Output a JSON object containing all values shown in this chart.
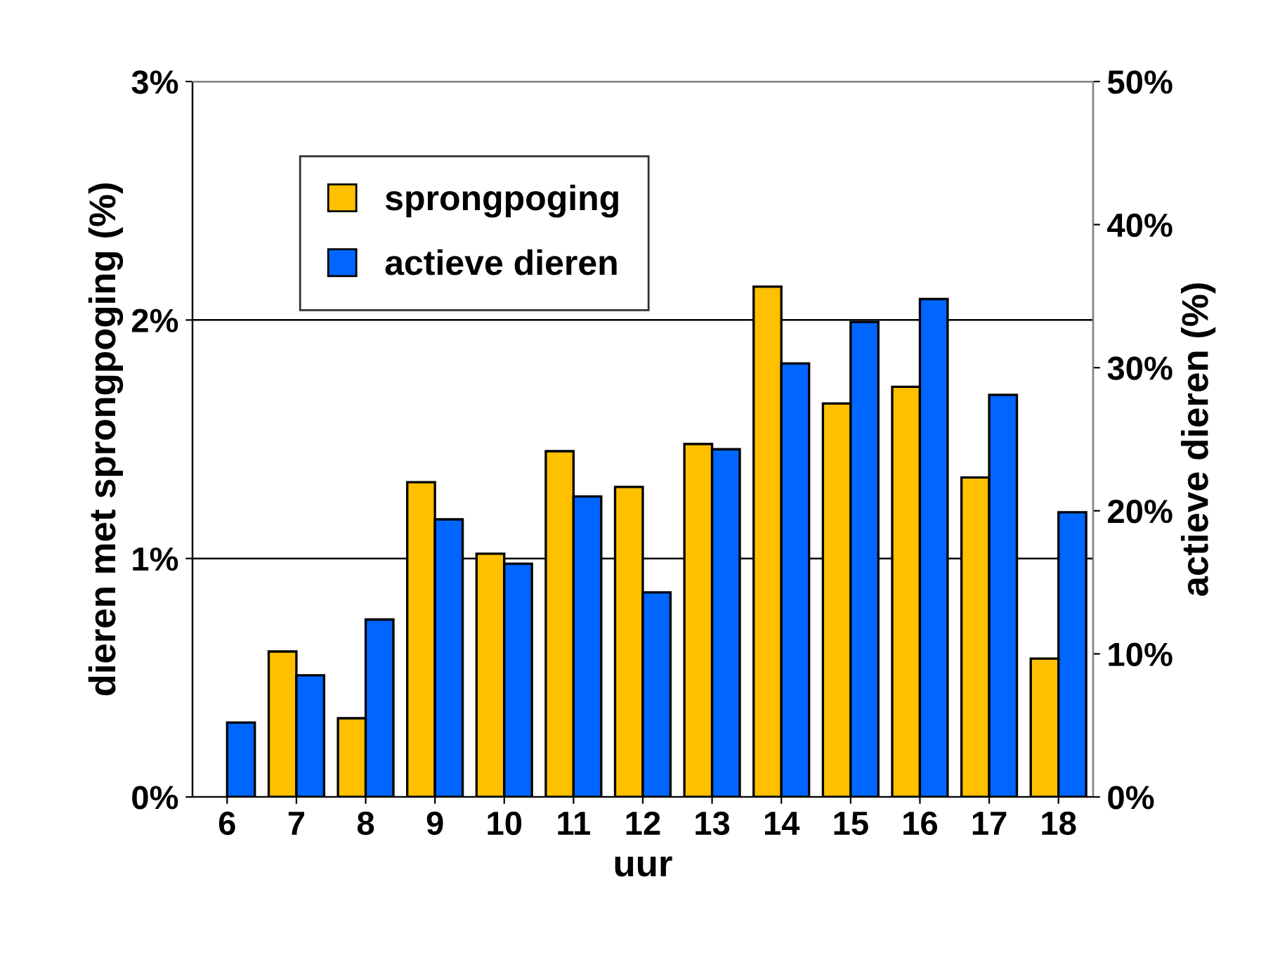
{
  "chart_data": {
    "type": "bar",
    "xlabel": "uur",
    "ylabel": "dieren met sprongpoging (%)",
    "y2label": "actieve dieren (%)",
    "categories": [
      "6",
      "7",
      "8",
      "9",
      "10",
      "11",
      "12",
      "13",
      "14",
      "15",
      "16",
      "17",
      "18"
    ],
    "series": [
      {
        "name": "sprongpoging",
        "color": "#ffc000",
        "values": [
          null,
          0.61,
          0.33,
          1.32,
          1.02,
          1.45,
          1.3,
          1.48,
          2.14,
          1.65,
          1.72,
          1.34,
          0.58
        ]
      },
      {
        "name": "actieve dieren",
        "color": "#0066ff",
        "axis": "y2",
        "values": [
          5.2,
          8.5,
          12.4,
          19.4,
          16.3,
          21.0,
          14.3,
          24.3,
          30.3,
          33.2,
          34.8,
          28.1,
          19.9
        ]
      }
    ],
    "ylim": [
      0,
      3
    ],
    "yticks": [
      {
        "value": 0,
        "label": "0%"
      },
      {
        "value": 1,
        "label": "1%"
      },
      {
        "value": 2,
        "label": "2%"
      },
      {
        "value": 3,
        "label": "3%"
      }
    ],
    "y2lim": [
      0,
      50
    ],
    "y2ticks": [
      {
        "value": 0,
        "label": "0%"
      },
      {
        "value": 10,
        "label": "10%"
      },
      {
        "value": 20,
        "label": "20%"
      },
      {
        "value": 30,
        "label": "30%"
      },
      {
        "value": 40,
        "label": "40%"
      },
      {
        "value": 50,
        "label": "50%"
      }
    ],
    "grid": "y",
    "legend": "top left"
  }
}
